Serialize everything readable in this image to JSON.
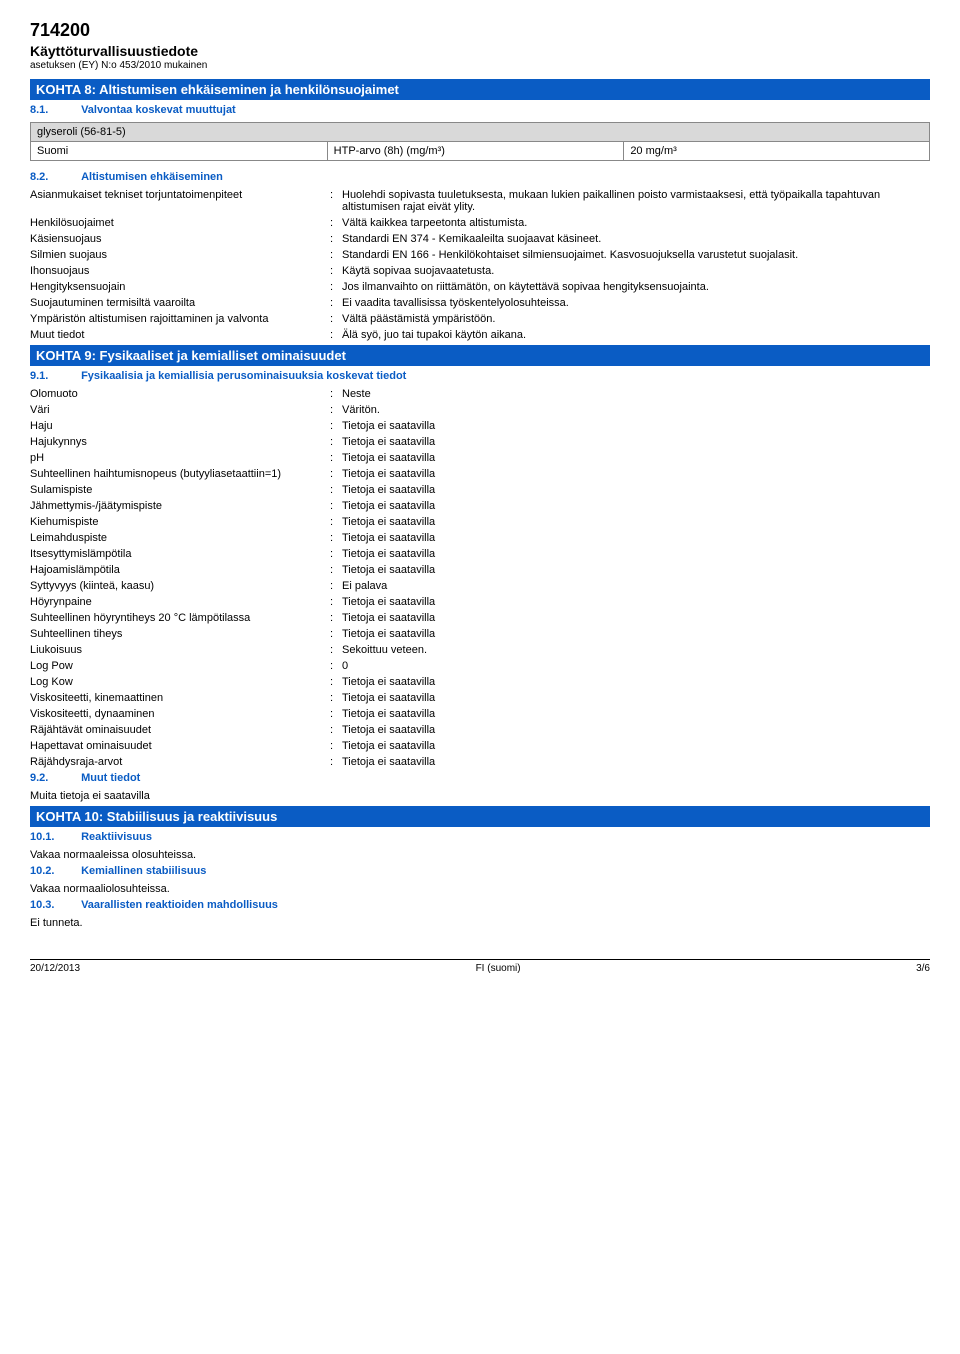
{
  "header": {
    "code": "714200",
    "title": "Käyttöturvallisuustiedote",
    "regulation": "asetuksen (EY) N:o 453/2010 mukainen"
  },
  "section8": {
    "header": "KOHTA 8: Altistumisen ehkäiseminen ja henkilönsuojaimet",
    "s81": {
      "num": "8.1.",
      "label": "Valvontaa koskevat muuttujat"
    },
    "table": {
      "header": "glyseroli (56-81-5)",
      "c1": "Suomi",
      "c2": "HTP-arvo (8h) (mg/m³)",
      "c3": "20 mg/m³"
    },
    "s82": {
      "num": "8.2.",
      "label": "Altistumisen ehkäiseminen"
    },
    "rows": [
      {
        "k": "Asianmukaiset tekniset torjuntatoimenpiteet",
        "v": "Huolehdi sopivasta tuuletuksesta, mukaan lukien paikallinen poisto varmistaaksesi, että työpaikalla tapahtuvan altistumisen rajat eivät ylity."
      },
      {
        "k": "Henkilösuojaimet",
        "v": "Vältä kaikkea tarpeetonta altistumista."
      },
      {
        "k": "Käsiensuojaus",
        "v": "Standardi EN 374 - Kemikaaleilta suojaavat käsineet."
      },
      {
        "k": "Silmien suojaus",
        "v": "Standardi EN 166 - Henkilökohtaiset silmiensuojaimet. Kasvosuojuksella varustetut suojalasit."
      },
      {
        "k": "Ihonsuojaus",
        "v": "Käytä sopivaa suojavaatetusta."
      },
      {
        "k": "Hengityksensuojain",
        "v": "Jos ilmanvaihto on riittämätön, on käytettävä sopivaa hengityksensuojainta."
      },
      {
        "k": "Suojautuminen termisiltä vaaroilta",
        "v": "Ei vaadita tavallisissa työskentelyolosuhteissa."
      },
      {
        "k": "Ympäristön altistumisen rajoittaminen ja valvonta",
        "v": "Vältä päästämistä ympäristöön."
      },
      {
        "k": "Muut tiedot",
        "v": "Älä syö, juo tai tupakoi käytön aikana."
      }
    ]
  },
  "section9": {
    "header": "KOHTA 9: Fysikaaliset ja kemialliset ominaisuudet",
    "s91": {
      "num": "9.1.",
      "label": "Fysikaalisia ja kemiallisia perusominaisuuksia koskevat tiedot"
    },
    "rows": [
      {
        "k": "Olomuoto",
        "v": "Neste"
      },
      {
        "k": "Väri",
        "v": "Väritön."
      },
      {
        "k": "Haju",
        "v": "Tietoja ei saatavilla"
      },
      {
        "k": "Hajukynnys",
        "v": "Tietoja ei saatavilla"
      },
      {
        "k": "pH",
        "v": "Tietoja ei saatavilla"
      },
      {
        "k": "Suhteellinen haihtumisnopeus (butyyliasetaattiin=1)",
        "v": "Tietoja ei saatavilla"
      },
      {
        "k": "Sulamispiste",
        "v": "Tietoja ei saatavilla"
      },
      {
        "k": "Jähmettymis-/jäätymispiste",
        "v": "Tietoja ei saatavilla"
      },
      {
        "k": "Kiehumispiste",
        "v": "Tietoja ei saatavilla"
      },
      {
        "k": "Leimahduspiste",
        "v": "Tietoja ei saatavilla"
      },
      {
        "k": "Itsesyttymislämpötila",
        "v": "Tietoja ei saatavilla"
      },
      {
        "k": "Hajoamislämpötila",
        "v": "Tietoja ei saatavilla"
      },
      {
        "k": "Syttyvyys (kiinteä, kaasu)",
        "v": "Ei palava"
      },
      {
        "k": "Höyrynpaine",
        "v": "Tietoja ei saatavilla"
      },
      {
        "k": "Suhteellinen höyryntiheys 20 °C lämpötilassa",
        "v": "Tietoja ei saatavilla"
      },
      {
        "k": "Suhteellinen tiheys",
        "v": "Tietoja ei saatavilla"
      },
      {
        "k": "Liukoisuus",
        "v": "Sekoittuu veteen."
      },
      {
        "k": "Log Pow",
        "v": "0"
      },
      {
        "k": "Log Kow",
        "v": "Tietoja ei saatavilla"
      },
      {
        "k": "Viskositeetti, kinemaattinen",
        "v": "Tietoja ei saatavilla"
      },
      {
        "k": "Viskositeetti, dynaaminen",
        "v": "Tietoja ei saatavilla"
      },
      {
        "k": "Räjähtävät ominaisuudet",
        "v": "Tietoja ei saatavilla"
      },
      {
        "k": "Hapettavat ominaisuudet",
        "v": "Tietoja ei saatavilla"
      },
      {
        "k": "Räjähdysraja-arvot",
        "v": "Tietoja ei saatavilla"
      }
    ],
    "s92": {
      "num": "9.2.",
      "label": "Muut tiedot"
    },
    "note": "Muita tietoja ei saatavilla"
  },
  "section10": {
    "header": "KOHTA 10: Stabiilisuus ja reaktiivisuus",
    "s101": {
      "num": "10.1.",
      "label": "Reaktiivisuus"
    },
    "note1": "Vakaa normaaleissa olosuhteissa.",
    "s102": {
      "num": "10.2.",
      "label": "Kemiallinen stabiilisuus"
    },
    "note2": "Vakaa normaaliolosuhteissa.",
    "s103": {
      "num": "10.3.",
      "label": "Vaarallisten reaktioiden mahdollisuus"
    },
    "note3": "Ei tunneta."
  },
  "footer": {
    "date": "20/12/2013",
    "lang": "FI (suomi)",
    "page": "3/6"
  }
}
